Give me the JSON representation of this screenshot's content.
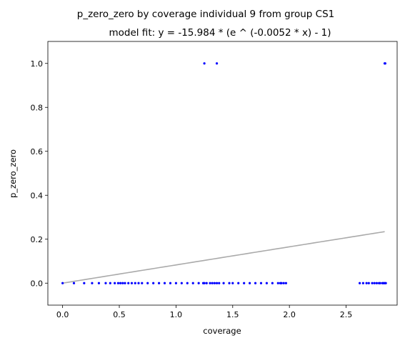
{
  "chart_data": {
    "type": "scatter",
    "title": "p_zero_zero by coverage individual 9 from group CS1",
    "subtitle": "model fit: y = -15.984 * (e ^ (-0.0052 * x) - 1)",
    "xlabel": "coverage",
    "ylabel": "p_zero_zero",
    "xlim": [
      -0.13,
      2.95
    ],
    "ylim": [
      -0.1,
      1.1
    ],
    "xticks": [
      0.0,
      0.5,
      1.0,
      1.5,
      2.0,
      2.5
    ],
    "xtick_labels": [
      "0.0",
      "0.5",
      "1.0",
      "1.5",
      "2.0",
      "2.5"
    ],
    "yticks": [
      0.0,
      0.2,
      0.4,
      0.6,
      0.8,
      1.0
    ],
    "ytick_labels": [
      "0.0",
      "0.2",
      "0.4",
      "0.6",
      "0.8",
      "1.0"
    ],
    "grid": false,
    "points_color": "#0000ff",
    "fit_color": "#aaaaaa",
    "points": [
      [
        0.0,
        0
      ],
      [
        0.1,
        0
      ],
      [
        0.19,
        0
      ],
      [
        0.26,
        0
      ],
      [
        0.32,
        0
      ],
      [
        0.38,
        0
      ],
      [
        0.42,
        0
      ],
      [
        0.46,
        0
      ],
      [
        0.49,
        0
      ],
      [
        0.51,
        0
      ],
      [
        0.53,
        0
      ],
      [
        0.55,
        0
      ],
      [
        0.58,
        0
      ],
      [
        0.61,
        0
      ],
      [
        0.64,
        0
      ],
      [
        0.67,
        0
      ],
      [
        0.7,
        0
      ],
      [
        0.75,
        0
      ],
      [
        0.8,
        0
      ],
      [
        0.85,
        0
      ],
      [
        0.9,
        0
      ],
      [
        0.95,
        0
      ],
      [
        1.0,
        0
      ],
      [
        1.05,
        0
      ],
      [
        1.1,
        0
      ],
      [
        1.15,
        0
      ],
      [
        1.2,
        0
      ],
      [
        1.24,
        0
      ],
      [
        1.25,
        0
      ],
      [
        1.27,
        0
      ],
      [
        1.3,
        0
      ],
      [
        1.32,
        0
      ],
      [
        1.34,
        0
      ],
      [
        1.36,
        0
      ],
      [
        1.38,
        0
      ],
      [
        1.42,
        0
      ],
      [
        1.47,
        0
      ],
      [
        1.5,
        0
      ],
      [
        1.55,
        0
      ],
      [
        1.6,
        0
      ],
      [
        1.65,
        0
      ],
      [
        1.7,
        0
      ],
      [
        1.75,
        0
      ],
      [
        1.8,
        0
      ],
      [
        1.85,
        0
      ],
      [
        1.9,
        0
      ],
      [
        1.92,
        0
      ],
      [
        1.93,
        0
      ],
      [
        1.95,
        0
      ],
      [
        1.97,
        0
      ],
      [
        2.62,
        0
      ],
      [
        2.65,
        0
      ],
      [
        2.68,
        0
      ],
      [
        2.7,
        0
      ],
      [
        2.73,
        0
      ],
      [
        2.75,
        0
      ],
      [
        2.77,
        0
      ],
      [
        2.79,
        0
      ],
      [
        2.8,
        0
      ],
      [
        2.82,
        0
      ],
      [
        2.83,
        0
      ],
      [
        2.84,
        0
      ],
      [
        2.85,
        0
      ],
      [
        1.25,
        1
      ],
      [
        1.36,
        1
      ],
      [
        2.84,
        1
      ],
      [
        2.845,
        1
      ]
    ],
    "fit": {
      "a": -15.984,
      "b": -0.0052,
      "x_range": [
        0.0,
        2.84
      ]
    }
  }
}
